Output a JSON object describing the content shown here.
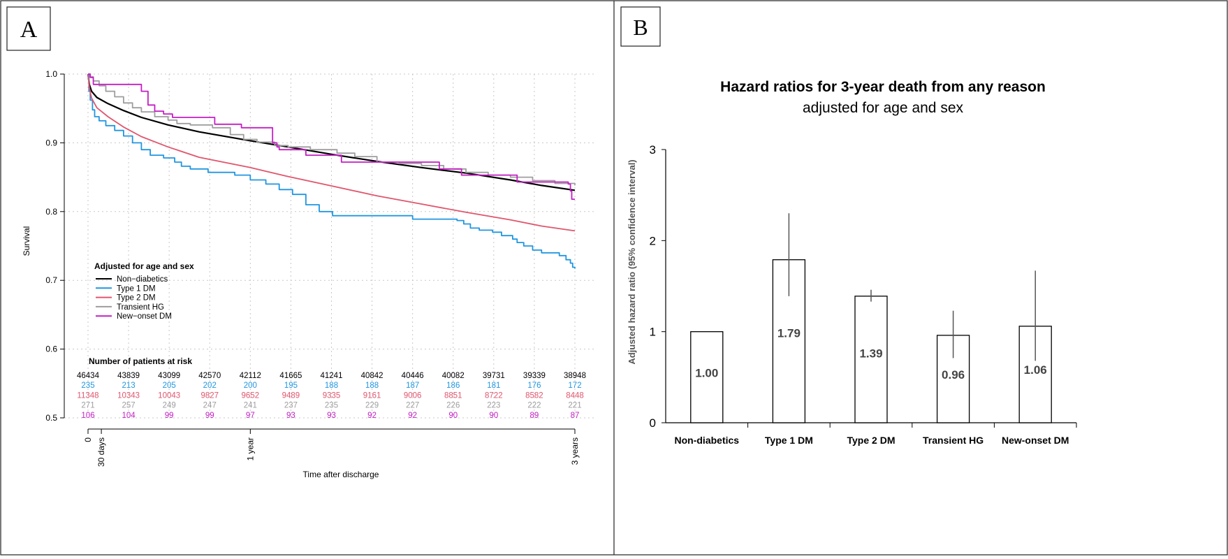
{
  "panels": {
    "a_label": "A",
    "b_label": "B"
  },
  "colors": {
    "non_diabetics": "#000000",
    "type1": "#2196e0",
    "type2": "#e0566d",
    "transient": "#9e9e9e",
    "new_onset": "#c41fc4",
    "bar_edge": "#000000",
    "grid": "#c8c8c8"
  },
  "chart_data": [
    {
      "type": "line",
      "xlabel": "Time after discharge",
      "ylabel": "Survival",
      "ylim": [
        0.5,
        1.0
      ],
      "yticks": [
        "0.5",
        "0.6",
        "0.7",
        "0.8",
        "0.9",
        "1.0"
      ],
      "xtick_labels": [
        "0",
        "30 days",
        "1 year",
        "3 years"
      ],
      "xtick_days": [
        0,
        30,
        365,
        1095
      ],
      "xlim_days": [
        0,
        1095
      ],
      "grid": true,
      "legend_title": "Adjusted for age and sex",
      "legend_position": "lower-left",
      "series": [
        {
          "name": "Non−diabetics",
          "color_key": "non_diabetics",
          "step": false,
          "points": [
            [
              0,
              1.0
            ],
            [
              3,
              0.985
            ],
            [
              8,
              0.975
            ],
            [
              20,
              0.966
            ],
            [
              45,
              0.957
            ],
            [
              80,
              0.947
            ],
            [
              120,
              0.937
            ],
            [
              180,
              0.926
            ],
            [
              250,
              0.916
            ],
            [
              365,
              0.903
            ],
            [
              450,
              0.894
            ],
            [
              550,
              0.883
            ],
            [
              650,
              0.873
            ],
            [
              750,
              0.864
            ],
            [
              850,
              0.856
            ],
            [
              950,
              0.846
            ],
            [
              1020,
              0.838
            ],
            [
              1095,
              0.831
            ]
          ]
        },
        {
          "name": "Type 1 DM",
          "color_key": "type1",
          "step": true,
          "points": [
            [
              0,
              1.0
            ],
            [
              2,
              0.975
            ],
            [
              5,
              0.962
            ],
            [
              10,
              0.948
            ],
            [
              15,
              0.938
            ],
            [
              25,
              0.932
            ],
            [
              40,
              0.925
            ],
            [
              60,
              0.918
            ],
            [
              80,
              0.91
            ],
            [
              100,
              0.9
            ],
            [
              120,
              0.89
            ],
            [
              140,
              0.882
            ],
            [
              170,
              0.878
            ],
            [
              195,
              0.872
            ],
            [
              210,
              0.866
            ],
            [
              230,
              0.862
            ],
            [
              270,
              0.857
            ],
            [
              330,
              0.853
            ],
            [
              365,
              0.846
            ],
            [
              400,
              0.84
            ],
            [
              430,
              0.832
            ],
            [
              460,
              0.825
            ],
            [
              490,
              0.81
            ],
            [
              520,
              0.8
            ],
            [
              550,
              0.794
            ],
            [
              700,
              0.794
            ],
            [
              730,
              0.789
            ],
            [
              830,
              0.787
            ],
            [
              845,
              0.782
            ],
            [
              860,
              0.776
            ],
            [
              880,
              0.773
            ],
            [
              910,
              0.77
            ],
            [
              930,
              0.765
            ],
            [
              955,
              0.76
            ],
            [
              965,
              0.755
            ],
            [
              980,
              0.75
            ],
            [
              1000,
              0.744
            ],
            [
              1020,
              0.74
            ],
            [
              1060,
              0.736
            ],
            [
              1075,
              0.73
            ],
            [
              1085,
              0.725
            ],
            [
              1090,
              0.719
            ],
            [
              1095,
              0.717
            ]
          ]
        },
        {
          "name": "Type 2 DM",
          "color_key": "type2",
          "step": false,
          "points": [
            [
              0,
              1.0
            ],
            [
              3,
              0.98
            ],
            [
              8,
              0.965
            ],
            [
              20,
              0.951
            ],
            [
              45,
              0.938
            ],
            [
              80,
              0.923
            ],
            [
              120,
              0.909
            ],
            [
              180,
              0.894
            ],
            [
              250,
              0.879
            ],
            [
              365,
              0.864
            ],
            [
              450,
              0.851
            ],
            [
              550,
              0.837
            ],
            [
              650,
              0.823
            ],
            [
              750,
              0.811
            ],
            [
              850,
              0.799
            ],
            [
              950,
              0.788
            ],
            [
              1020,
              0.779
            ],
            [
              1095,
              0.772
            ]
          ]
        },
        {
          "name": "Transient HG",
          "color_key": "transient",
          "step": true,
          "points": [
            [
              0,
              1.0
            ],
            [
              5,
              0.996
            ],
            [
              12,
              0.99
            ],
            [
              25,
              0.983
            ],
            [
              40,
              0.975
            ],
            [
              60,
              0.967
            ],
            [
              80,
              0.958
            ],
            [
              100,
              0.951
            ],
            [
              120,
              0.945
            ],
            [
              150,
              0.938
            ],
            [
              180,
              0.933
            ],
            [
              200,
              0.928
            ],
            [
              230,
              0.926
            ],
            [
              280,
              0.922
            ],
            [
              320,
              0.912
            ],
            [
              350,
              0.905
            ],
            [
              380,
              0.901
            ],
            [
              420,
              0.896
            ],
            [
              450,
              0.894
            ],
            [
              500,
              0.89
            ],
            [
              560,
              0.885
            ],
            [
              600,
              0.88
            ],
            [
              650,
              0.872
            ],
            [
              700,
              0.87
            ],
            [
              750,
              0.867
            ],
            [
              800,
              0.862
            ],
            [
              850,
              0.857
            ],
            [
              900,
              0.853
            ],
            [
              950,
              0.85
            ],
            [
              1000,
              0.845
            ],
            [
              1050,
              0.841
            ],
            [
              1095,
              0.838
            ]
          ]
        },
        {
          "name": "New−onset DM",
          "color_key": "new_onset",
          "step": true,
          "points": [
            [
              0,
              1.0
            ],
            [
              5,
              0.995
            ],
            [
              12,
              0.985
            ],
            [
              100,
              0.985
            ],
            [
              120,
              0.975
            ],
            [
              135,
              0.955
            ],
            [
              150,
              0.946
            ],
            [
              170,
              0.942
            ],
            [
              190,
              0.937
            ],
            [
              280,
              0.937
            ],
            [
              285,
              0.927
            ],
            [
              340,
              0.927
            ],
            [
              345,
              0.922
            ],
            [
              410,
              0.922
            ],
            [
              415,
              0.9
            ],
            [
              425,
              0.894
            ],
            [
              430,
              0.89
            ],
            [
              490,
              0.882
            ],
            [
              570,
              0.872
            ],
            [
              780,
              0.872
            ],
            [
              790,
              0.862
            ],
            [
              840,
              0.853
            ],
            [
              960,
              0.853
            ],
            [
              965,
              0.843
            ],
            [
              1080,
              0.84
            ],
            [
              1085,
              0.83
            ],
            [
              1088,
              0.818
            ],
            [
              1095,
              0.818
            ]
          ]
        }
      ],
      "risk_table": {
        "title": "Number of patients at risk",
        "rows": [
          {
            "color_key": "non_diabetics",
            "values": [
              "46434",
              "43839",
              "43099",
              "42570",
              "42112",
              "41665",
              "41241",
              "40842",
              "40446",
              "40082",
              "39731",
              "39339",
              "38948"
            ]
          },
          {
            "color_key": "type1",
            "values": [
              "235",
              "213",
              "205",
              "202",
              "200",
              "195",
              "188",
              "188",
              "187",
              "186",
              "181",
              "176",
              "172"
            ]
          },
          {
            "color_key": "type2",
            "values": [
              "11348",
              "10343",
              "10043",
              "9827",
              "9652",
              "9489",
              "9335",
              "9161",
              "9006",
              "8851",
              "8722",
              "8582",
              "8448"
            ]
          },
          {
            "color_key": "transient",
            "values": [
              "271",
              "257",
              "249",
              "247",
              "241",
              "237",
              "235",
              "229",
              "227",
              "226",
              "223",
              "222",
              "221"
            ]
          },
          {
            "color_key": "new_onset",
            "values": [
              "106",
              "104",
              "99",
              "99",
              "97",
              "93",
              "93",
              "92",
              "92",
              "90",
              "90",
              "89",
              "87"
            ]
          }
        ]
      }
    },
    {
      "type": "bar",
      "title": "Hazard ratios for 3-year death from any reason",
      "subtitle": "adjusted for age and sex",
      "ylabel": "Adjusted hazard ratio (95% confidence interval)",
      "ylim": [
        0,
        3
      ],
      "yticks": [
        "0",
        "1",
        "2",
        "3"
      ],
      "categories": [
        "Non-diabetics",
        "Type 1 DM",
        "Type 2 DM",
        "Transient HG",
        "New-onset DM"
      ],
      "values": [
        1.0,
        1.79,
        1.39,
        0.96,
        1.06
      ],
      "value_labels": [
        "1.00",
        "1.79",
        "1.39",
        "0.96",
        "1.06"
      ],
      "ci_low": [
        null,
        1.39,
        1.33,
        0.71,
        0.68
      ],
      "ci_high": [
        null,
        2.3,
        1.46,
        1.23,
        1.67
      ]
    }
  ]
}
